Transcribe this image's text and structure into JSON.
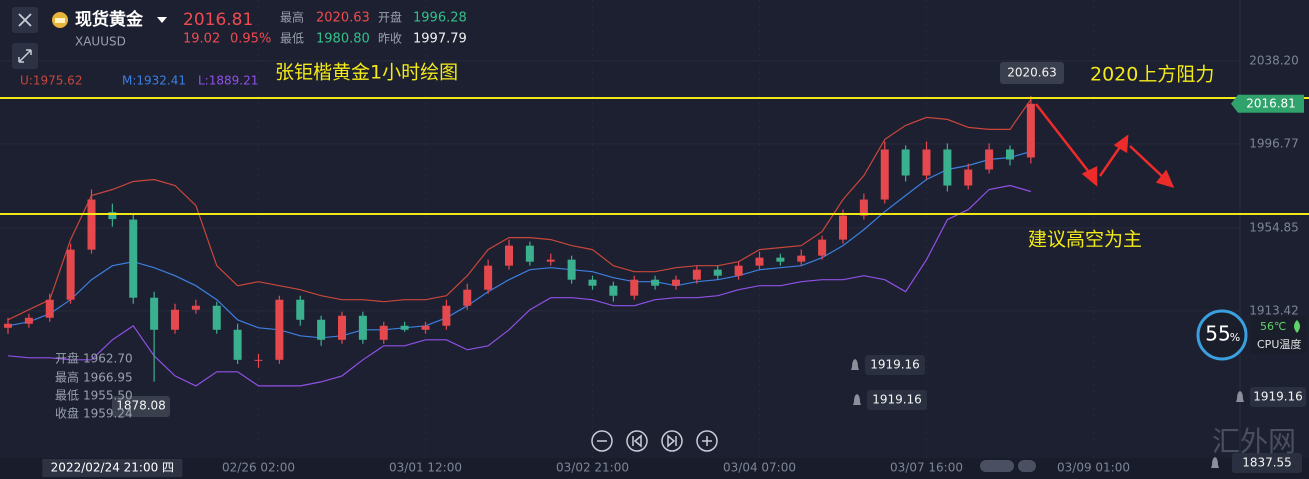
{
  "header": {
    "name": "现货黄金",
    "symbol": "XAUUSD",
    "price": "2016.81",
    "change": "19.02",
    "change_pct": "0.95%",
    "stats": [
      {
        "label": "最高",
        "value": "2020.63"
      },
      {
        "label": "开盘",
        "value": "1996.28"
      },
      {
        "label": "最低",
        "value": "1980.80"
      },
      {
        "label": "昨收",
        "value": "1997.79"
      }
    ]
  },
  "crosshair": {
    "rows": [
      {
        "label": "开盘",
        "value": "1962.70"
      },
      {
        "label": "最高",
        "value": "1966.95"
      },
      {
        "label": "最低",
        "value": "1955.50"
      },
      {
        "label": "收盘",
        "value": "1959.24"
      }
    ]
  },
  "alerts": [
    "1919.16",
    "1919.16",
    "1919.16",
    "1837.55"
  ],
  "widget": {
    "usage": "55",
    "unit": "%",
    "temperature": "56℃",
    "temperature_label": "CPU温度"
  },
  "watermark": "汇外网",
  "chart_data": {
    "type": "candlestick",
    "title": "张钜楷黄金1小时绘图",
    "annotations": [
      "2020上方阻力",
      "建议高空为主"
    ],
    "high_label": "2020.63",
    "low_label": "1878.08",
    "last_price_label": "2016.81",
    "up_color": "#e5484d",
    "down_color": "#3bb08f",
    "hline_color": "#f2e816",
    "hlines": [
      2019.7,
      1961.8
    ],
    "grid": true,
    "ylim": [
      1840,
      2068.6
    ],
    "yticks": [
      {
        "value": 2038.2,
        "label": "2038.20"
      },
      1996.77,
      1954.85,
      1913.42
    ],
    "categories": [
      null,
      null,
      null,
      null,
      null,
      "2022/02/24 21:00 四",
      null,
      null,
      null,
      null,
      null,
      null,
      "02/26 02:00",
      null,
      null,
      null,
      null,
      null,
      null,
      null,
      "03/01 12:00",
      null,
      null,
      null,
      null,
      null,
      null,
      null,
      "03/02 21:00",
      null,
      null,
      null,
      null,
      null,
      null,
      null,
      "03/04 07:00",
      null,
      null,
      null,
      null,
      null,
      null,
      null,
      "03/07 16:00",
      null,
      null,
      null,
      null,
      null,
      null,
      null,
      "03/09 01:00"
    ],
    "open": [
      1905,
      1907,
      1910,
      1919,
      1944,
      1962.7,
      1959,
      1920,
      1904,
      1914,
      1916,
      1904,
      1889,
      1889,
      1919,
      1909,
      1899,
      1911,
      1899,
      1906,
      1904,
      1906,
      1916,
      1924,
      1936,
      1946,
      1938,
      1939,
      1929,
      1926,
      1921,
      1929,
      1926,
      1929,
      1934,
      1931,
      1936,
      1940,
      1938,
      1941,
      1949,
      1961,
      1969,
      1994,
      1981,
      1994,
      1976,
      1984,
      1994,
      1990,
      null,
      null,
      null
    ],
    "high": [
      1910,
      1912,
      1922,
      1947,
      1974,
      1966.95,
      1962,
      1923,
      1917,
      1919,
      1918,
      1907,
      1892,
      1921,
      1921,
      1911,
      1913,
      1913,
      1908,
      1908,
      1908,
      1919,
      1927,
      1939,
      1949,
      1948,
      1942,
      1941,
      1931,
      1928,
      1931,
      1931,
      1931,
      1936,
      1936,
      1938,
      1943,
      1942,
      1944,
      1951,
      1964,
      1972,
      1998,
      1996,
      1998,
      1997,
      1987,
      1997,
      1996,
      2020.63,
      null,
      null,
      null
    ],
    "low": [
      1902,
      1905,
      1908,
      1917,
      1942,
      1955.5,
      1917,
      1878.08,
      1902,
      1912,
      1902,
      1887,
      1885,
      1887,
      1906,
      1896,
      1897,
      1897,
      1897,
      1903,
      1902,
      1904,
      1914,
      1922,
      1934,
      1936,
      1936,
      1927,
      1924,
      1918,
      1919,
      1924,
      1924,
      1927,
      1929,
      1929,
      1934,
      1936,
      1936,
      1939,
      1947,
      1959,
      1967,
      1978,
      1979,
      1973,
      1974,
      1982,
      1986,
      1987,
      null,
      null,
      null
    ],
    "close": [
      1907,
      1910,
      1919,
      1944,
      1969,
      1959.24,
      1920,
      1904,
      1914,
      1916,
      1904,
      1889,
      1889,
      1919,
      1909,
      1899,
      1911,
      1899,
      1906,
      1904,
      1906,
      1916,
      1924,
      1936,
      1946,
      1938,
      1939,
      1929,
      1926,
      1921,
      1929,
      1926,
      1929,
      1934,
      1931,
      1936,
      1940,
      1938,
      1941,
      1949,
      1961,
      1969,
      1994,
      1981,
      1994,
      1976,
      1984,
      1994,
      1989,
      2016.81,
      null,
      null,
      null
    ],
    "overlays": [
      {
        "label": "U:1975.62",
        "color": "#c9463b",
        "values": [
          1909,
          1914,
          1919,
          1949,
          1971,
          1974,
          1978,
          1979,
          1976,
          1966,
          1936,
          1926,
          1928,
          1926,
          1924,
          1921,
          1919,
          1919,
          1918,
          1919,
          1919,
          1921,
          1931,
          1944,
          1950,
          1950,
          1949,
          1946,
          1944,
          1936,
          1933,
          1933,
          1935,
          1936,
          1936,
          1938,
          1944,
          1945,
          1946,
          1953,
          1969,
          1981,
          1999,
          2006,
          2010,
          2009,
          2005,
          2004,
          2004,
          2019,
          null,
          null,
          null
        ]
      },
      {
        "label": "M:1932.41",
        "color": "#3d7fe0",
        "values": [
          1906,
          1908,
          1912,
          1919,
          1929,
          1936,
          1938,
          1935,
          1931,
          1926,
          1919,
          1909,
          1905,
          1904,
          1901,
          1900,
          1901,
          1904,
          1904,
          1905,
          1906,
          1910,
          1916,
          1923,
          1929,
          1934,
          1935,
          1934,
          1933,
          1930,
          1928,
          1928,
          1926,
          1928,
          1929,
          1931,
          1934,
          1935,
          1936,
          1940,
          1946,
          1954,
          1963,
          1971,
          1979,
          1984,
          1986,
          1989,
          1990,
          1993,
          null,
          null,
          null
        ]
      },
      {
        "label": "L:1889.21",
        "color": "#9150e6",
        "values": [
          1891,
          1890,
          1890,
          1889,
          1889,
          1899,
          1906,
          1891,
          1881,
          1876,
          1883,
          1883,
          1876,
          1876,
          1876,
          1878,
          1881,
          1889,
          1896,
          1896,
          1899,
          1899,
          1894,
          1896,
          1904,
          1914,
          1920,
          1920,
          1919,
          1916,
          1916,
          1919,
          1920,
          1920,
          1921,
          1924,
          1926,
          1926,
          1928,
          1929,
          1929,
          1931,
          1929,
          1923,
          1939,
          1959,
          1964,
          1974,
          1976,
          1973,
          null,
          null,
          null
        ]
      }
    ]
  }
}
